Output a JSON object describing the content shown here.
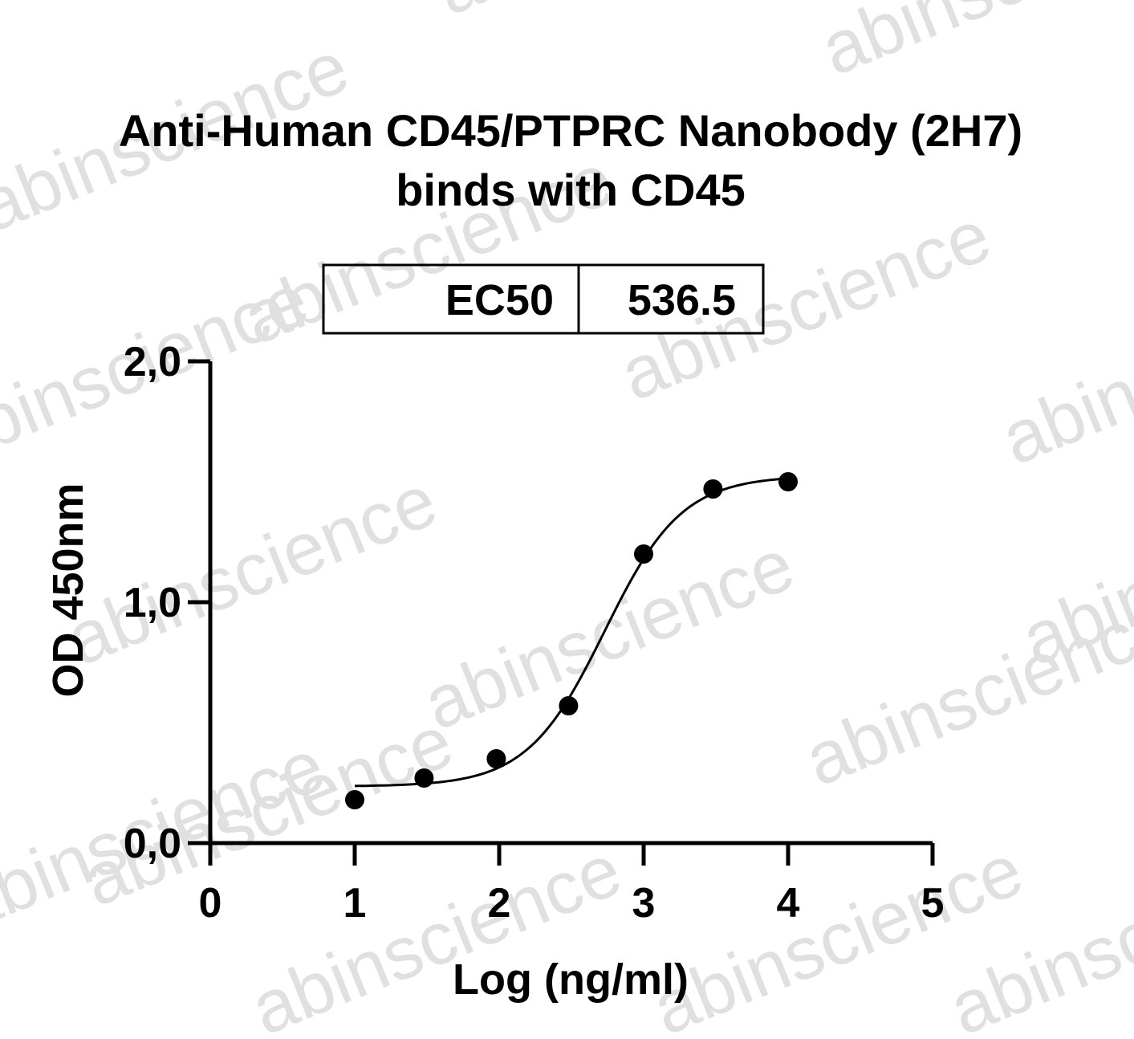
{
  "chart_data": {
    "type": "scatter",
    "title": "Anti-Human CD45/PTPRC Nanobody (2H7)",
    "subtitle": "binds with CD45",
    "xlabel": "Log (ng/ml)",
    "ylabel": "OD 450nm",
    "xlim": [
      0,
      5
    ],
    "ylim": [
      0,
      2
    ],
    "x_ticks": [
      0,
      1,
      2,
      3,
      4,
      5
    ],
    "x_tick_labels": [
      "0",
      "1",
      "2",
      "3",
      "4",
      "5"
    ],
    "y_ticks": [
      0,
      1,
      2
    ],
    "y_tick_labels": [
      "0,0",
      "1,0",
      "2,0"
    ],
    "grid": false,
    "series": [
      {
        "points": [
          {
            "x": 1.0,
            "y": 0.18
          },
          {
            "x": 1.48,
            "y": 0.27
          },
          {
            "x": 1.98,
            "y": 0.35
          },
          {
            "x": 2.48,
            "y": 0.57
          },
          {
            "x": 3.0,
            "y": 1.2
          },
          {
            "x": 3.48,
            "y": 1.47
          },
          {
            "x": 4.0,
            "y": 1.5
          }
        ],
        "fit": {
          "model": "4PL sigmoid",
          "bottom": 0.235,
          "top": 1.525,
          "log_ec50": 2.73,
          "hill_slope": 1.62
        }
      }
    ],
    "ec50_table": {
      "label": "EC50",
      "value": "536.5"
    }
  },
  "watermark": "abinscience",
  "colors": {
    "marks": "#000000",
    "watermark": "#e0e0e0",
    "background": "#ffffff"
  }
}
